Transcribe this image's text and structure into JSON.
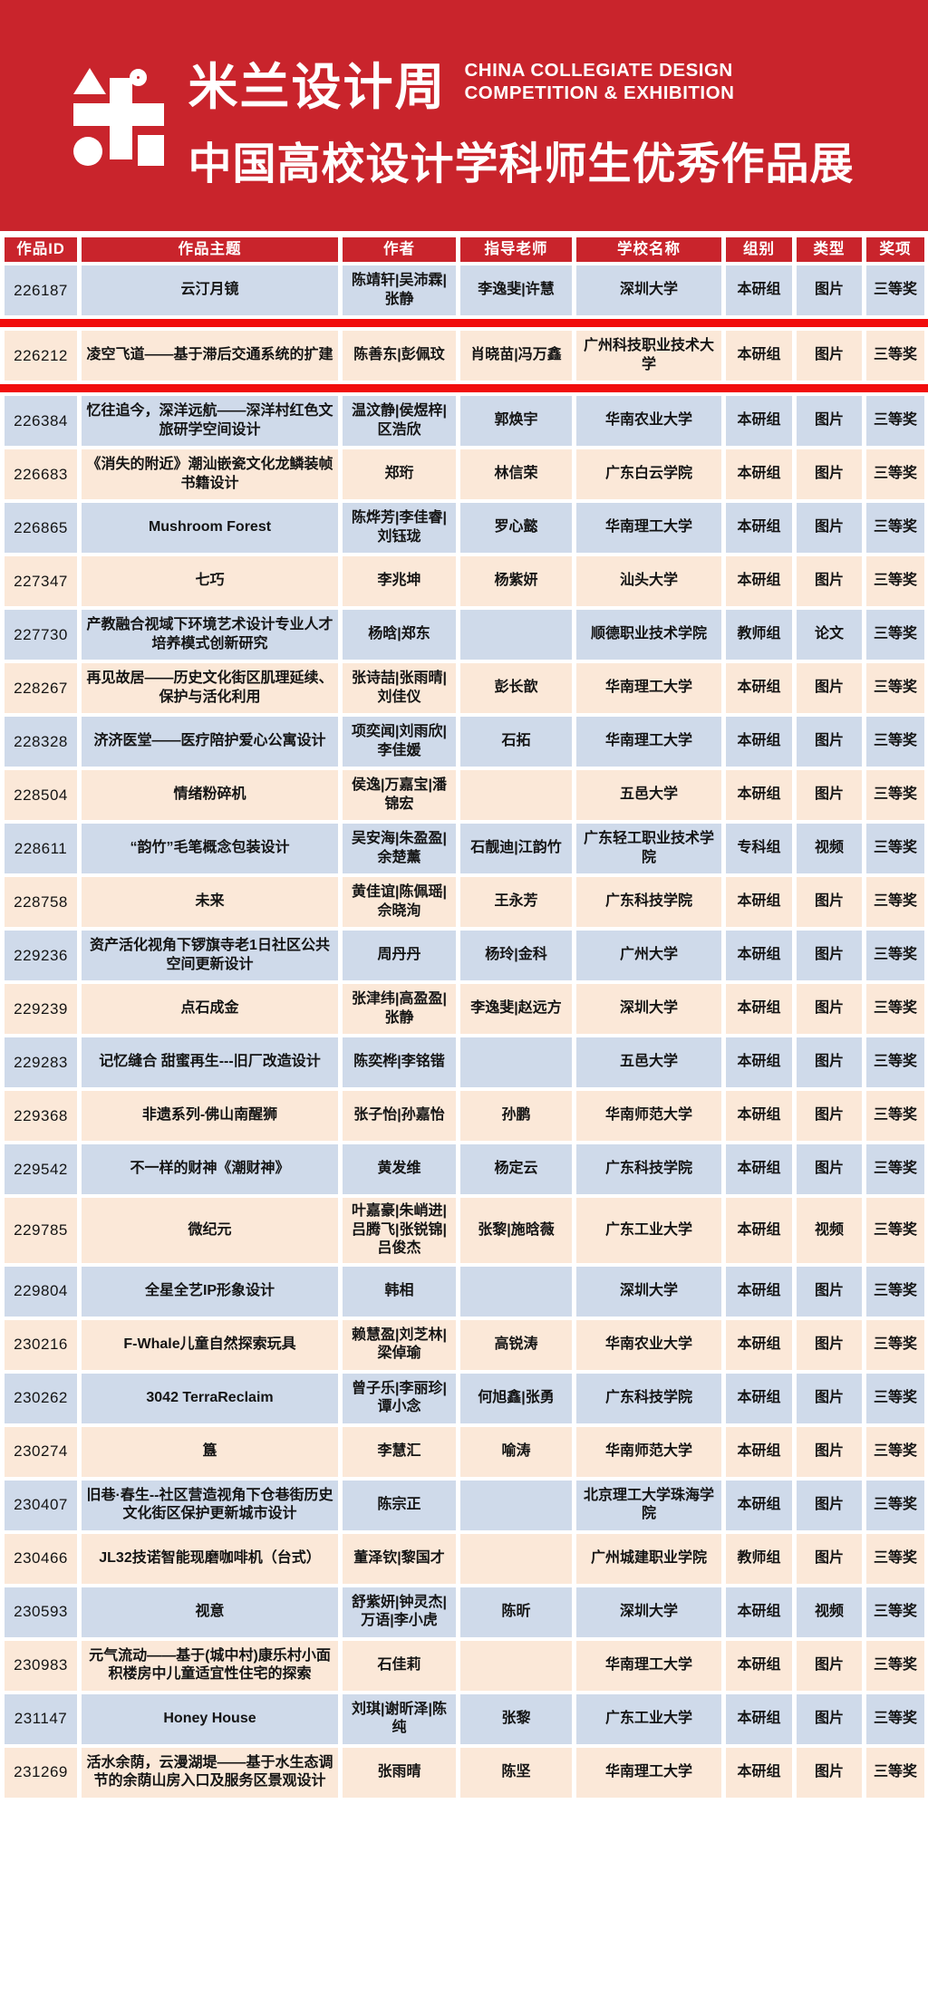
{
  "banner": {
    "logo": "milan-design-week-geometric-mi-logo",
    "title_cn": "米兰设计周",
    "title_en_line1": "CHINA COLLEGIATE DESIGN",
    "title_en_line2": "COMPETITION & EXHIBITION",
    "subtitle_cn": "中国高校设计学科师生优秀作品展",
    "background_color": "#c9242c",
    "text_color": "#ffffff"
  },
  "table": {
    "columns": [
      "作品ID",
      "作品主题",
      "作者",
      "指导老师",
      "学校名称",
      "组别",
      "类型",
      "奖项"
    ],
    "header_bg": "#c9242c",
    "row_color_odd": "#cfdaea",
    "row_color_even": "#fbe8d8",
    "separator_color": "#f10d0d",
    "separators_after_rows": [
      0,
      1
    ],
    "rows": [
      {
        "id": "226187",
        "title": "云汀月镜",
        "authors": "陈靖轩|吴沛霖|张静",
        "advisors": "李逸斐|许慧",
        "school": "深圳大学",
        "group": "本研组",
        "type": "图片",
        "award": "三等奖"
      },
      {
        "id": "226212",
        "title": "凌空飞道——基于滞后交通系统的扩建",
        "authors": "陈善东|彭佩玟",
        "advisors": "肖晓苗|冯万鑫",
        "school": "广州科技职业技术大学",
        "group": "本研组",
        "type": "图片",
        "award": "三等奖"
      },
      {
        "id": "226384",
        "title": "忆往追今，深洋远航——深洋村红色文旅研学空间设计",
        "authors": "温汶静|侯煜梓|区浩欣",
        "advisors": "郭焕宇",
        "school": "华南农业大学",
        "group": "本研组",
        "type": "图片",
        "award": "三等奖"
      },
      {
        "id": "226683",
        "title": "《消失的附近》潮汕嵌瓷文化龙鳞装帧书籍设计",
        "authors": "郑珩",
        "advisors": "林信荣",
        "school": "广东白云学院",
        "group": "本研组",
        "type": "图片",
        "award": "三等奖"
      },
      {
        "id": "226865",
        "title": "Mushroom Forest",
        "authors": "陈烨芳|李佳睿|刘钰珑",
        "advisors": "罗心懿",
        "school": "华南理工大学",
        "group": "本研组",
        "type": "图片",
        "award": "三等奖"
      },
      {
        "id": "227347",
        "title": "七巧",
        "authors": "李兆坤",
        "advisors": "杨紫妍",
        "school": "汕头大学",
        "group": "本研组",
        "type": "图片",
        "award": "三等奖"
      },
      {
        "id": "227730",
        "title": "产教融合视域下环境艺术设计专业人才培养模式创新研究",
        "authors": "杨晗|郑东",
        "advisors": "",
        "school": "顺德职业技术学院",
        "group": "教师组",
        "type": "论文",
        "award": "三等奖"
      },
      {
        "id": "228267",
        "title": "再见故居——历史文化街区肌理延续、保护与活化利用",
        "authors": "张诗喆|张雨晴|刘佳仪",
        "advisors": "彭长歆",
        "school": "华南理工大学",
        "group": "本研组",
        "type": "图片",
        "award": "三等奖"
      },
      {
        "id": "228328",
        "title": "济济医堂——医疗陪护爱心公寓设计",
        "authors": "项奕闻|刘雨欣|李佳媛",
        "advisors": "石拓",
        "school": "华南理工大学",
        "group": "本研组",
        "type": "图片",
        "award": "三等奖"
      },
      {
        "id": "228504",
        "title": "情绪粉碎机",
        "authors": "侯逸|万嘉宝|潘锦宏",
        "advisors": "",
        "school": "五邑大学",
        "group": "本研组",
        "type": "图片",
        "award": "三等奖"
      },
      {
        "id": "228611",
        "title": "“韵竹”毛笔概念包装设计",
        "authors": "吴安海|朱盈盈|余楚薰",
        "advisors": "石靓迪|江韵竹",
        "school": "广东轻工职业技术学院",
        "group": "专科组",
        "type": "视频",
        "award": "三等奖"
      },
      {
        "id": "228758",
        "title": "未来",
        "authors": "黄佳谊|陈佩瑶|佘晓洵",
        "advisors": "王永芳",
        "school": "广东科技学院",
        "group": "本研组",
        "type": "图片",
        "award": "三等奖"
      },
      {
        "id": "229236",
        "title": "资产活化视角下锣旗寺老1日社区公共空间更新设计",
        "authors": "周丹丹",
        "advisors": "杨玲|金科",
        "school": "广州大学",
        "group": "本研组",
        "type": "图片",
        "award": "三等奖"
      },
      {
        "id": "229239",
        "title": "点石成金",
        "authors": "张津纬|高盈盈|张静",
        "advisors": "李逸斐|赵远方",
        "school": "深圳大学",
        "group": "本研组",
        "type": "图片",
        "award": "三等奖"
      },
      {
        "id": "229283",
        "title": "记忆缝合 甜蜜再生---旧厂改造设计",
        "authors": "陈奕桦|李铭锴",
        "advisors": "",
        "school": "五邑大学",
        "group": "本研组",
        "type": "图片",
        "award": "三等奖"
      },
      {
        "id": "229368",
        "title": "非遗系列-佛山南醒狮",
        "authors": "张子怡|孙嘉怡",
        "advisors": "孙鹏",
        "school": "华南师范大学",
        "group": "本研组",
        "type": "图片",
        "award": "三等奖"
      },
      {
        "id": "229542",
        "title": "不一样的财神《潮财神》",
        "authors": "黄发维",
        "advisors": "杨定云",
        "school": "广东科技学院",
        "group": "本研组",
        "type": "图片",
        "award": "三等奖"
      },
      {
        "id": "229785",
        "title": "微纪元",
        "authors": "叶嘉豪|朱峭进|吕腾飞|张锐锦|吕俊杰",
        "advisors": "张黎|施晗薇",
        "school": "广东工业大学",
        "group": "本研组",
        "type": "视频",
        "award": "三等奖"
      },
      {
        "id": "229804",
        "title": "全星全艺IP形象设计",
        "authors": "韩相",
        "advisors": "",
        "school": "深圳大学",
        "group": "本研组",
        "type": "图片",
        "award": "三等奖"
      },
      {
        "id": "230216",
        "title": "F-Whale儿童自然探索玩具",
        "authors": "赖慧盈|刘芝林|梁倬瑜",
        "advisors": "高锐涛",
        "school": "华南农业大学",
        "group": "本研组",
        "type": "图片",
        "award": "三等奖"
      },
      {
        "id": "230262",
        "title": "3042 TerraReclaim",
        "authors": "曾子乐|李丽珍|谭小念",
        "advisors": "何旭鑫|张勇",
        "school": "广东科技学院",
        "group": "本研组",
        "type": "图片",
        "award": "三等奖"
      },
      {
        "id": "230274",
        "title": "簋",
        "authors": "李慧汇",
        "advisors": "喻涛",
        "school": "华南师范大学",
        "group": "本研组",
        "type": "图片",
        "award": "三等奖"
      },
      {
        "id": "230407",
        "title": "旧巷·春生--社区营造视角下仓巷街历史文化街区保护更新城市设计",
        "authors": "陈宗正",
        "advisors": "",
        "school": "北京理工大学珠海学院",
        "group": "本研组",
        "type": "图片",
        "award": "三等奖"
      },
      {
        "id": "230466",
        "title": "JL32技诺智能现磨咖啡机（台式）",
        "authors": "董泽钦|黎国才",
        "advisors": "",
        "school": "广州城建职业学院",
        "group": "教师组",
        "type": "图片",
        "award": "三等奖"
      },
      {
        "id": "230593",
        "title": "视意",
        "authors": "舒紫妍|钟灵杰|万语|李小虎",
        "advisors": "陈昕",
        "school": "深圳大学",
        "group": "本研组",
        "type": "视频",
        "award": "三等奖"
      },
      {
        "id": "230983",
        "title": "元气流动——基于(城中村)康乐村小面积楼房中儿童适宜性住宅的探索",
        "authors": "石佳莉",
        "advisors": "",
        "school": "华南理工大学",
        "group": "本研组",
        "type": "图片",
        "award": "三等奖"
      },
      {
        "id": "231147",
        "title": "Honey House",
        "authors": "刘琪|谢昕泽|陈纯",
        "advisors": "张黎",
        "school": "广东工业大学",
        "group": "本研组",
        "type": "图片",
        "award": "三等奖"
      },
      {
        "id": "231269",
        "title": "活水余荫，云漫湖堤——基于水生态调节的余荫山房入口及服务区景观设计",
        "authors": "张雨晴",
        "advisors": "陈坚",
        "school": "华南理工大学",
        "group": "本研组",
        "type": "图片",
        "award": "三等奖"
      }
    ]
  }
}
